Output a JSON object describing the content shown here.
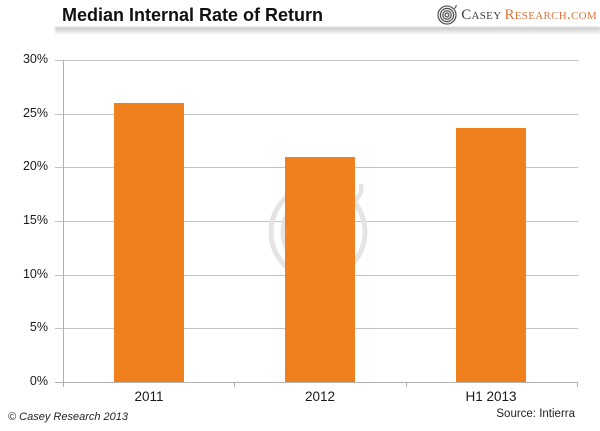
{
  "header": {
    "title": "Median Internal Rate of Return",
    "logo": {
      "brand_primary": "Casey",
      "brand_secondary": "Research.com",
      "icon": "spiral-logo-icon",
      "primary_color": "#3f3f3f",
      "secondary_color": "#de7438"
    }
  },
  "footer": {
    "copyright": "© Casey Research 2013",
    "source": "Source: Intierra"
  },
  "chart_data": {
    "type": "bar",
    "title": "Median Internal Rate of Return",
    "categories": [
      "2011",
      "2012",
      "H1 2013"
    ],
    "values": [
      26,
      21,
      23.7
    ],
    "unit": "%",
    "xlabel": "",
    "ylabel": "",
    "ylim": [
      0,
      30
    ],
    "yticks": [
      0,
      5,
      10,
      15,
      20,
      25,
      30
    ],
    "ytick_labels": [
      "0%",
      "5%",
      "10%",
      "15%",
      "20%",
      "25%",
      "30%"
    ],
    "grid": true,
    "legend": false,
    "bar_color": "#F0801E",
    "gridline_color": "#c2c2c2",
    "axis_color": "#b0b0b0",
    "watermark": "casey-research-spiral-watermark"
  }
}
